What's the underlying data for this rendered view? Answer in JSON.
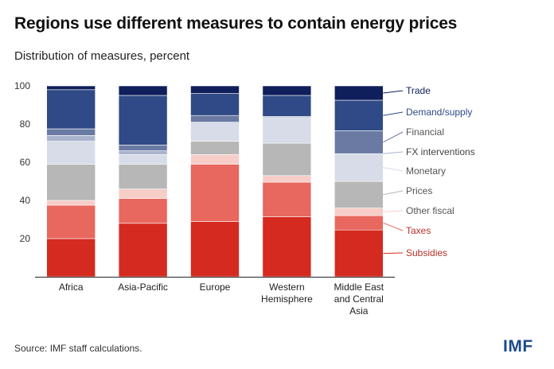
{
  "header": {
    "title": "Regions use different measures to contain energy prices",
    "subtitle": "Distribution of measures, percent"
  },
  "footer": {
    "source": "Source: IMF staff calculations.",
    "logo": "IMF"
  },
  "chart_data": {
    "type": "bar",
    "stacked": true,
    "categories": [
      [
        "Africa"
      ],
      [
        "Asia-Pacific"
      ],
      [
        "Europe"
      ],
      [
        "Western",
        "Hemisphere"
      ],
      [
        "Middle East",
        "and Central",
        "Asia"
      ]
    ],
    "ylim": [
      0,
      100
    ],
    "yticks": [
      20,
      40,
      60,
      80,
      100
    ],
    "grid": false,
    "legend_position": "right",
    "series": [
      {
        "name": "Subsidies",
        "color": "#d52a1f",
        "label_color": "#b8322a",
        "values": [
          20,
          28,
          29,
          31.5,
          24.5
        ]
      },
      {
        "name": "Taxes",
        "color": "#e8675e",
        "label_color": "#b8322a",
        "values": [
          17.5,
          13,
          30,
          18,
          7.5
        ]
      },
      {
        "name": "Other fiscal",
        "color": "#f7cdc8",
        "label_color": "#555555",
        "values": [
          2.5,
          5,
          5,
          3.5,
          4
        ]
      },
      {
        "name": "Prices",
        "color": "#b7b7b7",
        "label_color": "#555555",
        "values": [
          19,
          13,
          7,
          17,
          14
        ]
      },
      {
        "name": "Monetary",
        "color": "#d7dce8",
        "label_color": "#555555",
        "values": [
          12,
          5,
          10,
          13,
          14.5
        ]
      },
      {
        "name": "FX interventions",
        "color": "#a9b3cc",
        "label_color": "#444444",
        "values": [
          3,
          2,
          0,
          0.5,
          0
        ]
      },
      {
        "name": "Financial",
        "color": "#6a7aa3",
        "label_color": "#555555",
        "values": [
          3.5,
          3,
          3.5,
          0.5,
          12
        ]
      },
      {
        "name": "Demand/supply",
        "color": "#2f4a86",
        "label_color": "#2f4a86",
        "values": [
          20.5,
          26,
          11.5,
          11,
          16
        ]
      },
      {
        "name": "Trade",
        "color": "#0f1f5c",
        "label_color": "#0f1f5c",
        "values": [
          2,
          5,
          4,
          5,
          7.5
        ]
      }
    ]
  }
}
